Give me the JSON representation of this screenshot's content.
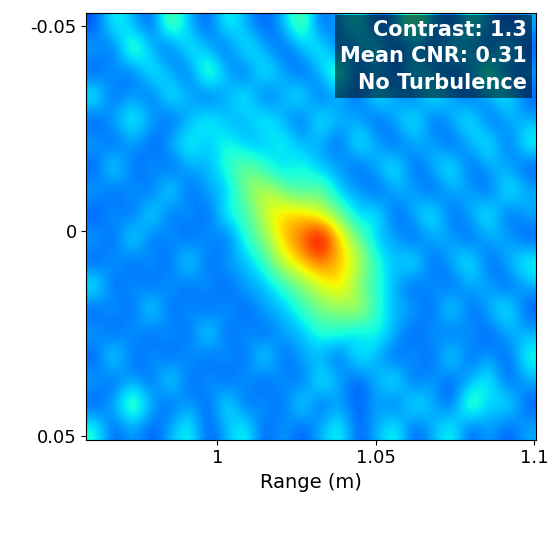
{
  "chart_data": {
    "type": "heatmap",
    "xlabel": "Range (m)",
    "xlim": [
      0.9587,
      1.1006
    ],
    "xticks": [
      1,
      1.05,
      1.1
    ],
    "ylim": [
      0.051,
      -0.053
    ],
    "yticks": [
      -0.05,
      0,
      0.05
    ],
    "annotations": [
      "Contrast: 1.3",
      "Mean CNR: 0.31",
      "No Turbulence"
    ],
    "value_range": [
      0,
      1
    ],
    "cells": [
      [
        0.2,
        0.4,
        0.3,
        0.2,
        0.5,
        0.3,
        0.2,
        0.4,
        0.3,
        0.2,
        0.3,
        0.5,
        0.2,
        0.3,
        0.4,
        0.2,
        0.3,
        0.5,
        0.3,
        0.2,
        0.4,
        0.3,
        0.2,
        0.3
      ],
      [
        0.3,
        0.2,
        0.5,
        0.3,
        0.2,
        0.4,
        0.3,
        0.2,
        0.4,
        0.3,
        0.2,
        0.3,
        0.4,
        0.2,
        0.3,
        0.4,
        0.2,
        0.3,
        0.2,
        0.4,
        0.3,
        0.2,
        0.4,
        0.2
      ],
      [
        0.2,
        0.3,
        0.2,
        0.4,
        0.3,
        0.2,
        0.5,
        0.3,
        0.2,
        0.4,
        0.3,
        0.2,
        0.3,
        0.5,
        0.2,
        0.3,
        0.2,
        0.4,
        0.3,
        0.2,
        0.3,
        0.5,
        0.2,
        0.3
      ],
      [
        0.4,
        0.2,
        0.3,
        0.2,
        0.4,
        0.3,
        0.2,
        0.3,
        0.4,
        0.2,
        0.3,
        0.4,
        0.2,
        0.3,
        0.2,
        0.4,
        0.3,
        0.2,
        0.4,
        0.3,
        0.2,
        0.3,
        0.4,
        0.2
      ],
      [
        0.2,
        0.3,
        0.4,
        0.3,
        0.2,
        0.3,
        0.4,
        0.3,
        0.3,
        0.4,
        0.3,
        0.2,
        0.4,
        0.3,
        0.3,
        0.2,
        0.3,
        0.4,
        0.2,
        0.3,
        0.4,
        0.2,
        0.3,
        0.3
      ],
      [
        0.3,
        0.2,
        0.3,
        0.2,
        0.3,
        0.4,
        0.3,
        0.4,
        0.3,
        0.3,
        0.4,
        0.3,
        0.3,
        0.2,
        0.4,
        0.3,
        0.2,
        0.3,
        0.3,
        0.2,
        0.3,
        0.4,
        0.2,
        0.4
      ],
      [
        0.2,
        0.4,
        0.2,
        0.3,
        0.2,
        0.3,
        0.3,
        0.4,
        0.5,
        0.4,
        0.3,
        0.4,
        0.3,
        0.3,
        0.2,
        0.3,
        0.4,
        0.2,
        0.3,
        0.4,
        0.2,
        0.3,
        0.3,
        0.2
      ],
      [
        0.3,
        0.2,
        0.3,
        0.2,
        0.4,
        0.2,
        0.3,
        0.3,
        0.5,
        0.6,
        0.5,
        0.4,
        0.5,
        0.3,
        0.3,
        0.2,
        0.3,
        0.3,
        0.2,
        0.3,
        0.3,
        0.2,
        0.4,
        0.3
      ],
      [
        0.2,
        0.3,
        0.2,
        0.4,
        0.2,
        0.3,
        0.2,
        0.4,
        0.4,
        0.6,
        0.7,
        0.7,
        0.6,
        0.5,
        0.3,
        0.4,
        0.2,
        0.3,
        0.4,
        0.2,
        0.3,
        0.4,
        0.2,
        0.3
      ],
      [
        0.3,
        0.2,
        0.4,
        0.2,
        0.3,
        0.2,
        0.3,
        0.2,
        0.4,
        0.5,
        0.7,
        0.8,
        1.0,
        0.7,
        0.5,
        0.3,
        0.3,
        0.2,
        0.3,
        0.3,
        0.2,
        0.3,
        0.3,
        0.2
      ],
      [
        0.2,
        0.3,
        0.2,
        0.3,
        0.2,
        0.4,
        0.2,
        0.3,
        0.3,
        0.4,
        0.6,
        0.7,
        0.8,
        0.7,
        0.6,
        0.4,
        0.3,
        0.4,
        0.2,
        0.3,
        0.4,
        0.2,
        0.3,
        0.4
      ],
      [
        0.4,
        0.2,
        0.3,
        0.2,
        0.3,
        0.2,
        0.3,
        0.2,
        0.3,
        0.3,
        0.4,
        0.5,
        0.6,
        0.7,
        0.5,
        0.4,
        0.3,
        0.2,
        0.3,
        0.2,
        0.3,
        0.3,
        0.2,
        0.3
      ],
      [
        0.2,
        0.3,
        0.2,
        0.4,
        0.2,
        0.3,
        0.2,
        0.3,
        0.2,
        0.3,
        0.3,
        0.4,
        0.5,
        0.5,
        0.6,
        0.4,
        0.3,
        0.3,
        0.2,
        0.4,
        0.2,
        0.3,
        0.4,
        0.2
      ],
      [
        0.3,
        0.2,
        0.3,
        0.2,
        0.3,
        0.2,
        0.4,
        0.2,
        0.3,
        0.2,
        0.3,
        0.3,
        0.4,
        0.4,
        0.3,
        0.4,
        0.3,
        0.2,
        0.3,
        0.2,
        0.3,
        0.2,
        0.3,
        0.3
      ],
      [
        0.2,
        0.4,
        0.2,
        0.3,
        0.2,
        0.3,
        0.2,
        0.3,
        0.2,
        0.4,
        0.2,
        0.3,
        0.3,
        0.2,
        0.4,
        0.3,
        0.2,
        0.3,
        0.2,
        0.4,
        0.2,
        0.3,
        0.2,
        0.4
      ],
      [
        0.3,
        0.2,
        0.3,
        0.2,
        0.4,
        0.2,
        0.3,
        0.2,
        0.3,
        0.2,
        0.3,
        0.2,
        0.4,
        0.3,
        0.2,
        0.3,
        0.4,
        0.2,
        0.3,
        0.2,
        0.3,
        0.4,
        0.2,
        0.3
      ],
      [
        0.2,
        0.3,
        0.5,
        0.3,
        0.2,
        0.3,
        0.2,
        0.4,
        0.2,
        0.3,
        0.2,
        0.4,
        0.2,
        0.3,
        0.2,
        0.3,
        0.2,
        0.4,
        0.3,
        0.2,
        0.5,
        0.3,
        0.4,
        0.2
      ],
      [
        0.4,
        0.2,
        0.3,
        0.2,
        0.3,
        0.4,
        0.2,
        0.3,
        0.4,
        0.2,
        0.3,
        0.2,
        0.3,
        0.4,
        0.2,
        0.3,
        0.4,
        0.2,
        0.3,
        0.4,
        0.2,
        0.3,
        0.2,
        0.3
      ]
    ]
  }
}
